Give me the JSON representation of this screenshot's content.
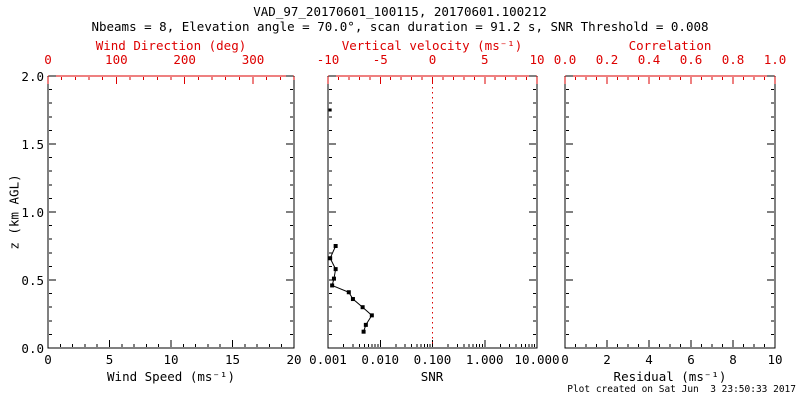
{
  "header": {
    "title": "VAD_97_20170601_100115, 20170601.100212",
    "subtitle": "Nbeams = 8, Elevation angle = 70.0°, scan duration = 91.2 s, SNR Threshold = 0.008"
  },
  "footer": {
    "created": "Plot created on Sat Jun  3 23:50:33 2017"
  },
  "colors": {
    "frame": "#000000",
    "top_axis": "#dd0000",
    "refline": "#dd0000",
    "data": "#000000",
    "background": "#ffffff"
  },
  "y_axis": {
    "title": "z (km AGL)",
    "min": 0,
    "max": 2,
    "major_ticks": [
      0,
      0.5,
      1,
      1.5,
      2
    ],
    "tick_labels": [
      "0.0",
      "0.5",
      "1.0",
      "1.5",
      "2.0"
    ],
    "minor_step": 0.1
  },
  "chart_data": [
    {
      "type": "line",
      "panel": "wind",
      "top_axis": {
        "title": "Wind Direction (deg)",
        "scale": "linear",
        "min": 0,
        "max": 360,
        "major_ticks": [
          0,
          100,
          200,
          300
        ],
        "tick_labels": [
          "0",
          "100",
          "200",
          "300"
        ],
        "minor_step": 20
      },
      "bottom_axis": {
        "title": "Wind Speed (ms⁻¹)",
        "scale": "linear",
        "min": 0,
        "max": 20,
        "major_ticks": [
          0,
          5,
          10,
          15,
          20
        ],
        "tick_labels": [
          "0",
          "5",
          "10",
          "15",
          "20"
        ],
        "minor_step": 1
      },
      "series": []
    },
    {
      "type": "line",
      "panel": "snr",
      "top_axis": {
        "title": "Vertical velocity (ms⁻¹)",
        "scale": "linear",
        "min": -10,
        "max": 10,
        "major_ticks": [
          -10,
          -5,
          0,
          5,
          10
        ],
        "tick_labels": [
          "-10",
          "-5",
          "0",
          "5",
          "10"
        ],
        "minor_step": 1,
        "refline_at": 0
      },
      "bottom_axis": {
        "title": "SNR",
        "scale": "log",
        "min": 0.001,
        "max": 10,
        "major_ticks": [
          0.001,
          0.01,
          0.1,
          1,
          10
        ],
        "tick_labels": [
          "0.001",
          "0.010",
          "0.100",
          "1.000",
          "10.000"
        ]
      },
      "series": [
        {
          "name": "snr-profile",
          "marker": "filled-square",
          "marker_size": 4,
          "line": true,
          "points": [
            [
              0.0014,
              0.75
            ],
            [
              0.0011,
              0.66
            ],
            [
              0.0014,
              0.58
            ],
            [
              0.0013,
              0.51
            ],
            [
              0.0012,
              0.46
            ],
            [
              0.0025,
              0.41
            ],
            [
              0.003,
              0.36
            ],
            [
              0.0046,
              0.3
            ],
            [
              0.0069,
              0.24
            ],
            [
              0.0053,
              0.17
            ],
            [
              0.0048,
              0.12
            ]
          ]
        },
        {
          "name": "snr-isolated-point",
          "marker": "filled-square",
          "marker_size": 3,
          "line": false,
          "points": [
            [
              0.0011,
              1.75
            ]
          ]
        }
      ]
    },
    {
      "type": "line",
      "panel": "residual",
      "top_axis": {
        "title": "Correlation",
        "scale": "linear",
        "min": 0,
        "max": 1,
        "major_ticks": [
          0,
          0.2,
          0.4,
          0.6,
          0.8,
          1
        ],
        "tick_labels": [
          "0.0",
          "0.2",
          "0.4",
          "0.6",
          "0.8",
          "1.0"
        ],
        "minor_step": 0.05
      },
      "bottom_axis": {
        "title": "Residual (ms⁻¹)",
        "scale": "linear",
        "min": 0,
        "max": 10,
        "major_ticks": [
          0,
          2,
          4,
          6,
          8,
          10
        ],
        "tick_labels": [
          "0",
          "2",
          "4",
          "6",
          "8",
          "10"
        ],
        "minor_step": 0.5
      },
      "series": []
    }
  ]
}
